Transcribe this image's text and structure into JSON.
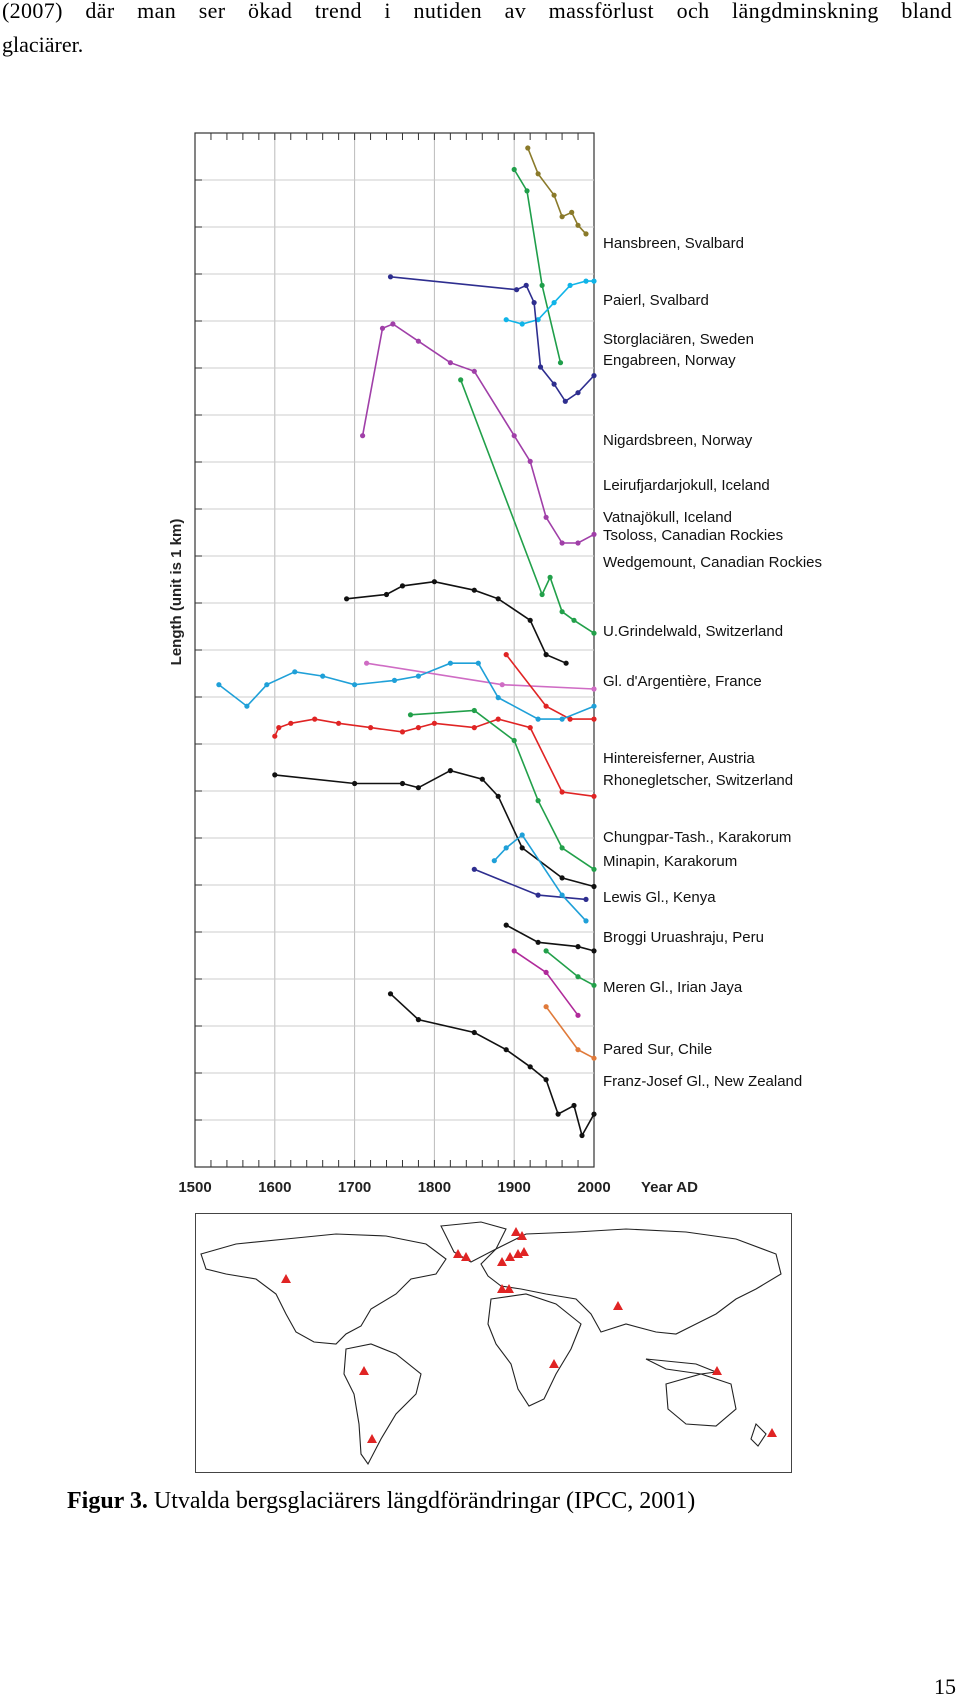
{
  "text": {
    "line1": "(2007) där man ser ökad trend i nutiden av massförlust och längdminskning bland",
    "line2": "glaciärer.",
    "caption_bold": "Figur 3.",
    "caption_rest": " Utvalda bergsglaciärers längdförändringar (IPCC, 2001)",
    "page_number": "15"
  },
  "chart_data": {
    "type": "line",
    "title": "",
    "xlabel": "Year AD",
    "ylabel": "Length (unit is 1 km)",
    "xlim": [
      1500,
      2000
    ],
    "xticks": [
      1500,
      1600,
      1700,
      1800,
      1900,
      2000
    ],
    "grid": true,
    "labels_position": "right",
    "series": [
      {
        "name": "Hansbreen, Svalbard",
        "color": "#8a7a2a",
        "points": [
          [
            1917,
            0.0
          ],
          [
            1930,
            0.6
          ],
          [
            1950,
            1.1
          ],
          [
            1960,
            1.6
          ],
          [
            1972,
            1.5
          ],
          [
            1980,
            1.8
          ],
          [
            1990,
            2.0
          ]
        ]
      },
      {
        "name": "Paierl, Svalbard",
        "color": "#1f9e4a",
        "points": [
          [
            1900,
            0.5
          ],
          [
            1916,
            1.0
          ],
          [
            1935,
            3.2
          ],
          [
            1958,
            5.0
          ]
        ]
      },
      {
        "name": "Storglaciären, Sweden",
        "color": "#10b4e8",
        "points": [
          [
            1890,
            4.0
          ],
          [
            1910,
            4.1
          ],
          [
            1930,
            4.0
          ],
          [
            1950,
            3.6
          ],
          [
            1970,
            3.2
          ],
          [
            1990,
            3.1
          ],
          [
            2000,
            3.1
          ]
        ]
      },
      {
        "name": "Engabreen, Norway",
        "color": "#2e2e8f",
        "points": [
          [
            1745,
            3.0
          ],
          [
            1903,
            3.3
          ],
          [
            1915,
            3.2
          ],
          [
            1925,
            3.6
          ],
          [
            1933,
            5.1
          ],
          [
            1950,
            5.5
          ],
          [
            1964,
            5.9
          ],
          [
            1980,
            5.7
          ],
          [
            2000,
            5.3
          ]
        ]
      },
      {
        "name": "Nigardsbreen, Norway",
        "color": "#a03fa8",
        "points": [
          [
            1710,
            6.7
          ],
          [
            1735,
            4.2
          ],
          [
            1748,
            4.1
          ],
          [
            1780,
            4.5
          ],
          [
            1820,
            5.0
          ],
          [
            1850,
            5.2
          ],
          [
            1900,
            6.7
          ],
          [
            1920,
            7.3
          ],
          [
            1940,
            8.6
          ],
          [
            1960,
            9.2
          ],
          [
            1980,
            9.2
          ],
          [
            2000,
            9.0
          ]
        ]
      },
      {
        "name": "Leirufjardarjokull, Iceland",
        "color": "#22a04a",
        "points": [
          [
            1833,
            5.4
          ],
          [
            1935,
            10.4
          ],
          [
            1945,
            10.0
          ],
          [
            1960,
            10.8
          ],
          [
            1975,
            11.0
          ],
          [
            2000,
            11.3
          ]
        ]
      },
      {
        "name": "Vatnajökull, Iceland",
        "color": "#111111",
        "points": [
          [
            1690,
            10.5
          ],
          [
            1740,
            10.4
          ],
          [
            1760,
            10.2
          ],
          [
            1800,
            10.1
          ],
          [
            1850,
            10.3
          ],
          [
            1880,
            10.5
          ],
          [
            1920,
            11.0
          ],
          [
            1940,
            11.8
          ],
          [
            1965,
            12.0
          ]
        ]
      },
      {
        "name": "Tsoloss, Canadian Rockies",
        "color": "#cf6cc4",
        "points": [
          [
            1715,
            12.0
          ],
          [
            1885,
            12.5
          ],
          [
            2000,
            12.6
          ]
        ]
      },
      {
        "name": "Wedgemount, Canadian Rockies",
        "color": "#e02424",
        "points": [
          [
            1890,
            11.8
          ],
          [
            1940,
            13.0
          ],
          [
            1970,
            13.3
          ],
          [
            2000,
            13.3
          ]
        ]
      },
      {
        "name": "U.Grindelwald, Switzerland",
        "color": "#1fa0d8",
        "points": [
          [
            1530,
            12.5
          ],
          [
            1565,
            13.0
          ],
          [
            1590,
            12.5
          ],
          [
            1625,
            12.2
          ],
          [
            1660,
            12.3
          ],
          [
            1700,
            12.5
          ],
          [
            1750,
            12.4
          ],
          [
            1780,
            12.3
          ],
          [
            1820,
            12.0
          ],
          [
            1855,
            12.0
          ],
          [
            1880,
            12.8
          ],
          [
            1930,
            13.3
          ],
          [
            1960,
            13.3
          ],
          [
            2000,
            13.0
          ]
        ]
      },
      {
        "name": "Gl. d'Argentière, France",
        "color": "#e02424",
        "points": [
          [
            1600,
            13.7
          ],
          [
            1605,
            13.5
          ],
          [
            1620,
            13.4
          ],
          [
            1650,
            13.3
          ],
          [
            1680,
            13.4
          ],
          [
            1720,
            13.5
          ],
          [
            1760,
            13.6
          ],
          [
            1780,
            13.5
          ],
          [
            1800,
            13.4
          ],
          [
            1850,
            13.5
          ],
          [
            1880,
            13.3
          ],
          [
            1920,
            13.5
          ],
          [
            1960,
            15.0
          ],
          [
            2000,
            15.1
          ]
        ]
      },
      {
        "name": "Hintereisferner, Austria",
        "color": "#22a04a",
        "points": [
          [
            1770,
            13.2
          ],
          [
            1850,
            13.1
          ],
          [
            1900,
            13.8
          ],
          [
            1930,
            15.2
          ],
          [
            1960,
            16.3
          ],
          [
            2000,
            16.8
          ]
        ]
      },
      {
        "name": "Rhonegletscher, Switzerland",
        "color": "#111111",
        "points": [
          [
            1600,
            14.6
          ],
          [
            1700,
            14.8
          ],
          [
            1760,
            14.8
          ],
          [
            1780,
            14.9
          ],
          [
            1820,
            14.5
          ],
          [
            1860,
            14.7
          ],
          [
            1880,
            15.1
          ],
          [
            1910,
            16.3
          ],
          [
            1960,
            17.0
          ],
          [
            2000,
            17.2
          ]
        ]
      },
      {
        "name": "Chungpar-Tash., Karakorum",
        "color": "#2e2e8f",
        "points": [
          [
            1850,
            16.8
          ],
          [
            1930,
            17.4
          ],
          [
            1990,
            17.5
          ]
        ]
      },
      {
        "name": "Minapin, Karakorum",
        "color": "#1fa0d8",
        "points": [
          [
            1875,
            16.6
          ],
          [
            1890,
            16.3
          ],
          [
            1910,
            16.0
          ],
          [
            1960,
            17.4
          ],
          [
            1990,
            18.0
          ]
        ]
      },
      {
        "name": "Lewis Gl., Kenya",
        "color": "#111111",
        "points": [
          [
            1890,
            18.1
          ],
          [
            1930,
            18.5
          ],
          [
            1980,
            18.6
          ],
          [
            2000,
            18.7
          ]
        ]
      },
      {
        "name": "Broggi Uruashraju, Peru",
        "color": "#22a04a",
        "points": [
          [
            1940,
            18.7
          ],
          [
            1980,
            19.3
          ],
          [
            2000,
            19.5
          ]
        ]
      },
      {
        "name": "Meren Gl., Irian Jaya",
        "color": "#b02a9a",
        "points": [
          [
            1900,
            18.7
          ],
          [
            1940,
            19.2
          ],
          [
            1980,
            20.2
          ]
        ]
      },
      {
        "name": "Pared Sur, Chile",
        "color": "#e07a3a",
        "points": [
          [
            1940,
            20.0
          ],
          [
            1980,
            21.0
          ],
          [
            2000,
            21.2
          ]
        ]
      },
      {
        "name": "Franz-Josef Gl., New Zealand",
        "color": "#111111",
        "points": [
          [
            1745,
            19.7
          ],
          [
            1780,
            20.3
          ],
          [
            1850,
            20.6
          ],
          [
            1890,
            21.0
          ],
          [
            1920,
            21.4
          ],
          [
            1940,
            21.7
          ],
          [
            1955,
            22.5
          ],
          [
            1975,
            22.3
          ],
          [
            1985,
            23.0
          ],
          [
            2000,
            22.5
          ]
        ]
      }
    ]
  },
  "map": {
    "triangle_color": "#e02424",
    "markers": [
      "Hansbreen, Svalbard",
      "Paierl, Svalbard",
      "Storglaciären, Sweden",
      "Engabreen, Norway",
      "Nigardsbreen, Norway",
      "Leirufjardarjokull, Iceland",
      "Vatnajökull, Iceland",
      "Tsoloss, Canadian Rockies",
      "Gl. d'Argentière, France",
      "Hintereisferner, Austria",
      "Chungpar-Tash., Karakorum",
      "Lewis Gl., Kenya",
      "Broggi Uruashraju, Peru",
      "Meren Gl., Irian Jaya",
      "Pared Sur, Chile",
      "Franz-Josef Gl., New Zealand"
    ]
  }
}
